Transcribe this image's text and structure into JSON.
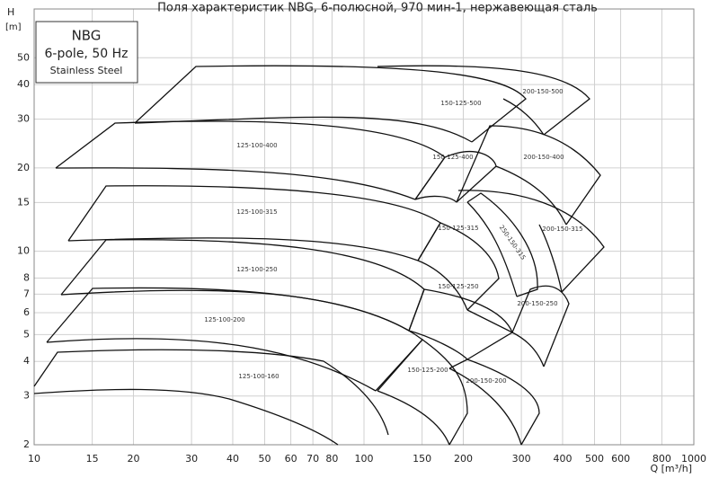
{
  "chart_data": {
    "type": "pump-map",
    "title": "Поля характеристик NBG, 6-полюсной, 970 мин-1, нержавеющая сталь",
    "y_label": "H",
    "y_unit": "[m]",
    "x_label": "Q [m³/h]",
    "legend_box": [
      "NBG",
      "6-pole, 50 Hz",
      "Stainless Steel"
    ],
    "log_x": true,
    "log_y": true,
    "grid": true,
    "xlim": [
      10,
      1000
    ],
    "ylim": [
      2,
      75
    ],
    "xticks": [
      10,
      15,
      20,
      30,
      40,
      50,
      60,
      70,
      80,
      100,
      150,
      200,
      300,
      400,
      500,
      600,
      800,
      1000
    ],
    "yticks": [
      2,
      3,
      4,
      5,
      6,
      7,
      8,
      10,
      15,
      20,
      30,
      40,
      50
    ],
    "regions": [
      "125-100-160",
      "125-100-200",
      "125-100-250",
      "125-100-315",
      "125-100-400",
      "150-125-200",
      "150-125-250",
      "150-125-315",
      "150-125-400",
      "150-125-500",
      "200-150-200",
      "200-150-250",
      "250-150-315",
      "200-150-315",
      "200-150-400",
      "200-150-500"
    ]
  }
}
